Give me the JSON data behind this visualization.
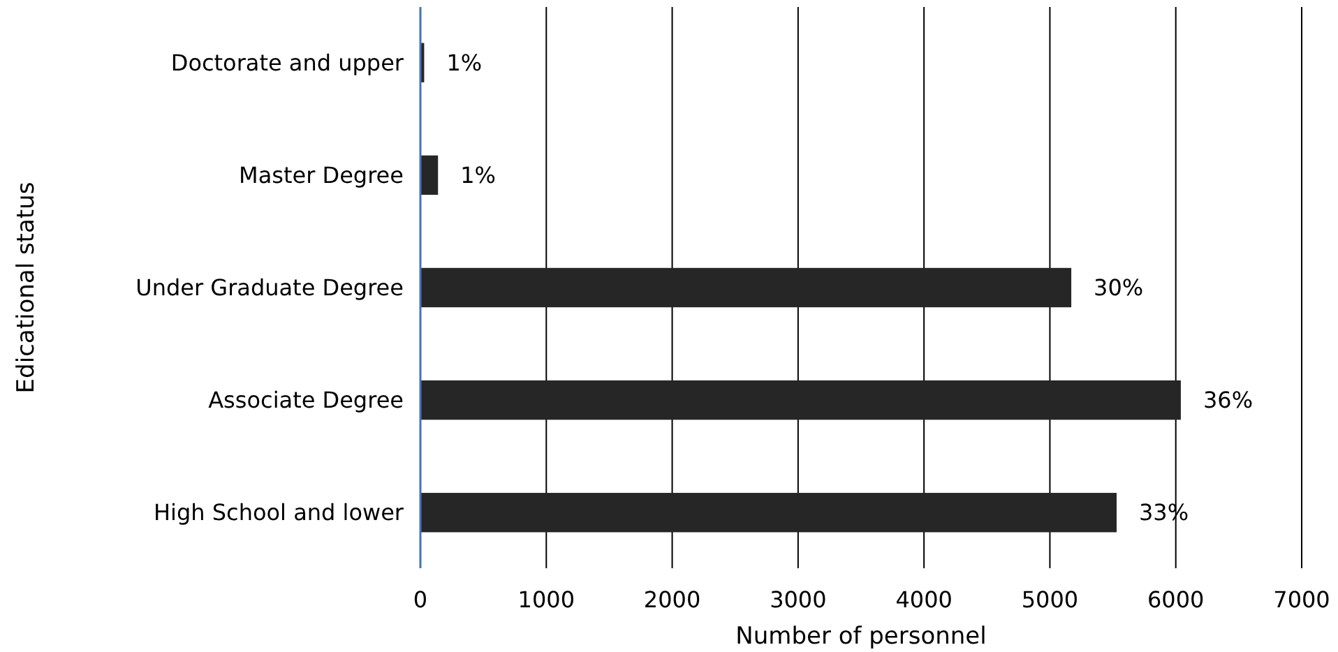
{
  "chart_data": {
    "type": "bar",
    "orientation": "horizontal",
    "xlabel": "Number of personnel",
    "ylabel": "Edicational status",
    "categories": [
      "Doctorate and upper",
      "Master Degree",
      "Under Graduate Degree",
      "Associate Degree",
      "High School and lower"
    ],
    "values": [
      30,
      140,
      5170,
      6040,
      5530
    ],
    "annotations": [
      {
        "text": "1%",
        "x": 30,
        "y": "Doctorate and upper"
      },
      {
        "text": "1%",
        "x": 140,
        "y": "Master Degree"
      },
      {
        "text": "30%",
        "x": 5170,
        "y": "Under Graduate Degree"
      },
      {
        "text": "36%",
        "x": 6040,
        "y": "Associate Degree"
      },
      {
        "text": "33%",
        "x": 5530,
        "y": "High School and lower"
      }
    ],
    "color": "#262626",
    "xlim": [
      0,
      7000
    ],
    "xticks": [
      0,
      1000,
      2000,
      3000,
      4000,
      5000,
      6000,
      7000
    ],
    "grid": "x"
  }
}
